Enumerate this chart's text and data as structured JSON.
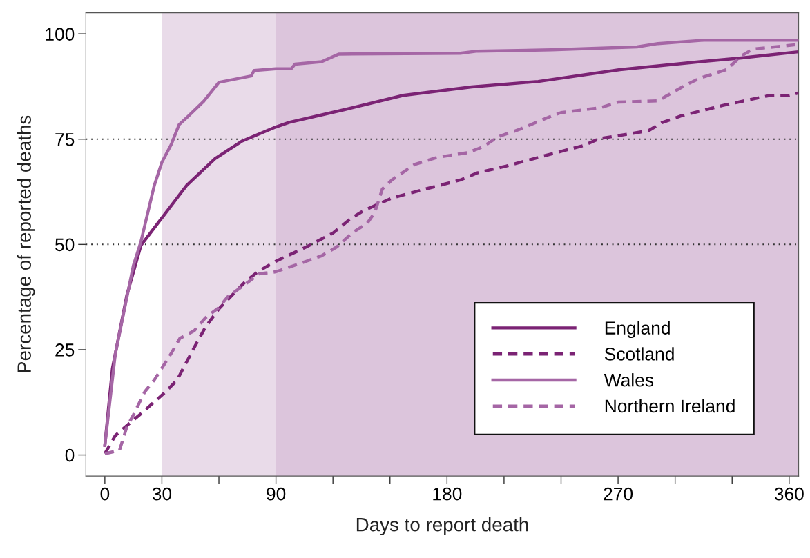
{
  "chart_data": {
    "type": "line",
    "xlabel": "Days to report death",
    "ylabel": "Percentage of reported deaths",
    "xlim": [
      -10,
      365
    ],
    "ylim": [
      -5,
      105
    ],
    "xticks": [
      0,
      {
        "value": 30,
        "label": "30"
      },
      {
        "value": 60,
        "label": null
      },
      90,
      {
        "value": 120,
        "label": null
      },
      {
        "value": 150,
        "label": null
      },
      180,
      {
        "value": 210,
        "label": null
      },
      {
        "value": 240,
        "label": null
      },
      270,
      {
        "value": 300,
        "label": null
      },
      {
        "value": 330,
        "label": null
      },
      360
    ],
    "yticks": [
      0,
      25,
      50,
      75,
      100
    ],
    "grid": false,
    "legend": "bottom right",
    "bands": [
      {
        "axis": "x",
        "from": 30,
        "to": 90,
        "color": "#e9dbe9"
      },
      {
        "axis": "x",
        "from": 90,
        "to": 365,
        "color": "#dcc5dc"
      }
    ],
    "ref_lines": [
      {
        "axis": "y",
        "value": 75,
        "line_style": "dotted",
        "color": "#333333"
      },
      {
        "axis": "y",
        "value": 50,
        "line_style": "dotted",
        "color": "#333333"
      }
    ],
    "series": [
      {
        "name": "England",
        "color": "#7b2374",
        "line_style": "solid",
        "x": [
          0,
          4,
          11.6,
          19,
          30,
          43,
          58,
          72,
          90,
          97,
          126,
          157,
          193,
          228,
          271,
          313,
          335,
          364
        ],
        "values": [
          2.3,
          20.6,
          38,
          49.8,
          56.3,
          64,
          70.4,
          74.5,
          77.9,
          79,
          82,
          85.4,
          87.4,
          88.7,
          91.5,
          93.4,
          94.3,
          95.7
        ]
      },
      {
        "name": "Scotland",
        "color": "#7b2374",
        "line_style": "dashed",
        "x": [
          0,
          5.5,
          11.6,
          19,
          26,
          32,
          38,
          47,
          53,
          60,
          66,
          74,
          81,
          90,
          106,
          120,
          129,
          136,
          151,
          169,
          187,
          196,
          211,
          235,
          252,
          260,
          286,
          293,
          303,
          325,
          349,
          360,
          365
        ],
        "values": [
          0.3,
          4.6,
          7,
          9.8,
          12.6,
          15,
          17.8,
          25.5,
          30.4,
          34.7,
          37.5,
          41.2,
          43.7,
          46,
          49.4,
          52.7,
          56,
          58,
          61,
          63.2,
          65.3,
          67,
          68.6,
          71.5,
          73.5,
          75.1,
          77,
          78.9,
          80.5,
          83,
          85.3,
          85.4,
          86
        ]
      },
      {
        "name": "Wales",
        "color": "#a566a5",
        "line_style": "solid",
        "x": [
          0,
          5.5,
          15,
          19,
          26,
          30,
          35,
          39,
          44,
          52,
          60,
          77,
          78.5,
          90,
          98,
          100,
          114,
          123,
          187,
          196,
          235,
          280,
          291,
          315,
          365
        ],
        "values": [
          2.3,
          24,
          45,
          50.7,
          64,
          69.5,
          73.8,
          78.4,
          80.5,
          84,
          88.5,
          90,
          91.3,
          91.7,
          91.7,
          92.8,
          93.4,
          95.2,
          95.4,
          95.9,
          96.2,
          96.9,
          97.7,
          98.5,
          98.5
        ]
      },
      {
        "name": "Northern Ireland",
        "color": "#a566a5",
        "line_style": "dashed",
        "x": [
          0,
          7.7,
          11.6,
          15,
          21,
          26,
          30,
          35,
          39.5,
          47,
          53,
          60,
          64.5,
          74,
          81,
          90,
          106,
          114,
          122,
          130,
          138,
          142,
          146,
          151,
          163,
          175,
          191,
          199,
          207,
          218,
          235,
          240,
          261,
          270,
          291,
          296,
          305,
          313,
          327,
          335,
          341,
          365
        ],
        "values": [
          0.3,
          1.1,
          6.7,
          9.5,
          15,
          17.8,
          20.6,
          24.2,
          27.7,
          29.5,
          32.6,
          35,
          37.5,
          40.6,
          43,
          43.5,
          46,
          47.3,
          49.4,
          52.7,
          55,
          57.6,
          63.2,
          65.3,
          69,
          70.7,
          71.8,
          73.2,
          75.6,
          77.3,
          80.5,
          81.3,
          82.5,
          83.8,
          84.1,
          85.4,
          87.7,
          89.5,
          91.5,
          94.8,
          96.4,
          97.5
        ]
      }
    ]
  }
}
